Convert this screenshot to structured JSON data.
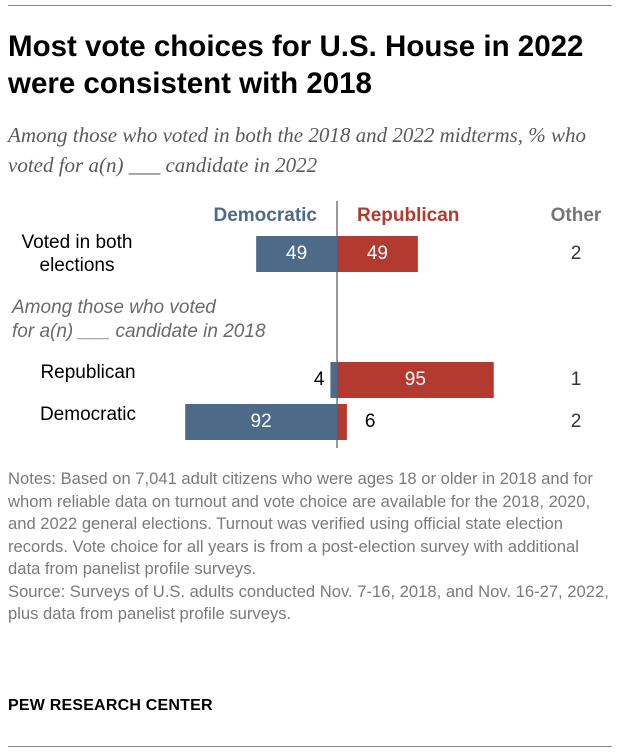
{
  "header": {
    "title": "Most vote choices for U.S. House in 2022 were consistent with 2018",
    "subtitle": "Among those who voted in both the 2018 and 2022 midterms, % who voted for a(n) ___ candidate in 2022"
  },
  "notes": {
    "notes": "Notes: Based on 7,041 adult citizens who were ages 18 or older in 2018 and for whom reliable data on turnout and vote choice are available for the 2018, 2020, and 2022 general elections. Turnout was verified using official state election records. Vote choice for all years is from a post-election survey with additional data from panelist profile surveys.",
    "source": "Source: Surveys of U.S. adults conducted Nov. 7-16, 2018, and Nov. 16-27, 2022, plus data from panelist profile surveys."
  },
  "brand": "PEW RESEARCH CENTER",
  "colors": {
    "democratic": "#4d6a89",
    "republican": "#b33a2e",
    "other_header": "#767676",
    "group_label": "#6a6a6a"
  },
  "chart_data": {
    "type": "bar",
    "orientation": "horizontal-diverging",
    "columns": [
      "Democratic",
      "Republican",
      "Other"
    ],
    "group_label": "Among those who voted for a(n) ___ candidate in 2018",
    "rows": [
      {
        "label": "Voted in both elections",
        "democratic": 49,
        "republican": 49,
        "other": 2
      },
      {
        "label": "Republican",
        "democratic": 4,
        "republican": 95,
        "other": 1
      },
      {
        "label": "Democratic",
        "democratic": 92,
        "republican": 6,
        "other": 2
      }
    ],
    "xlim": [
      0,
      100
    ],
    "grid": false,
    "legend": "column headers above bars"
  }
}
